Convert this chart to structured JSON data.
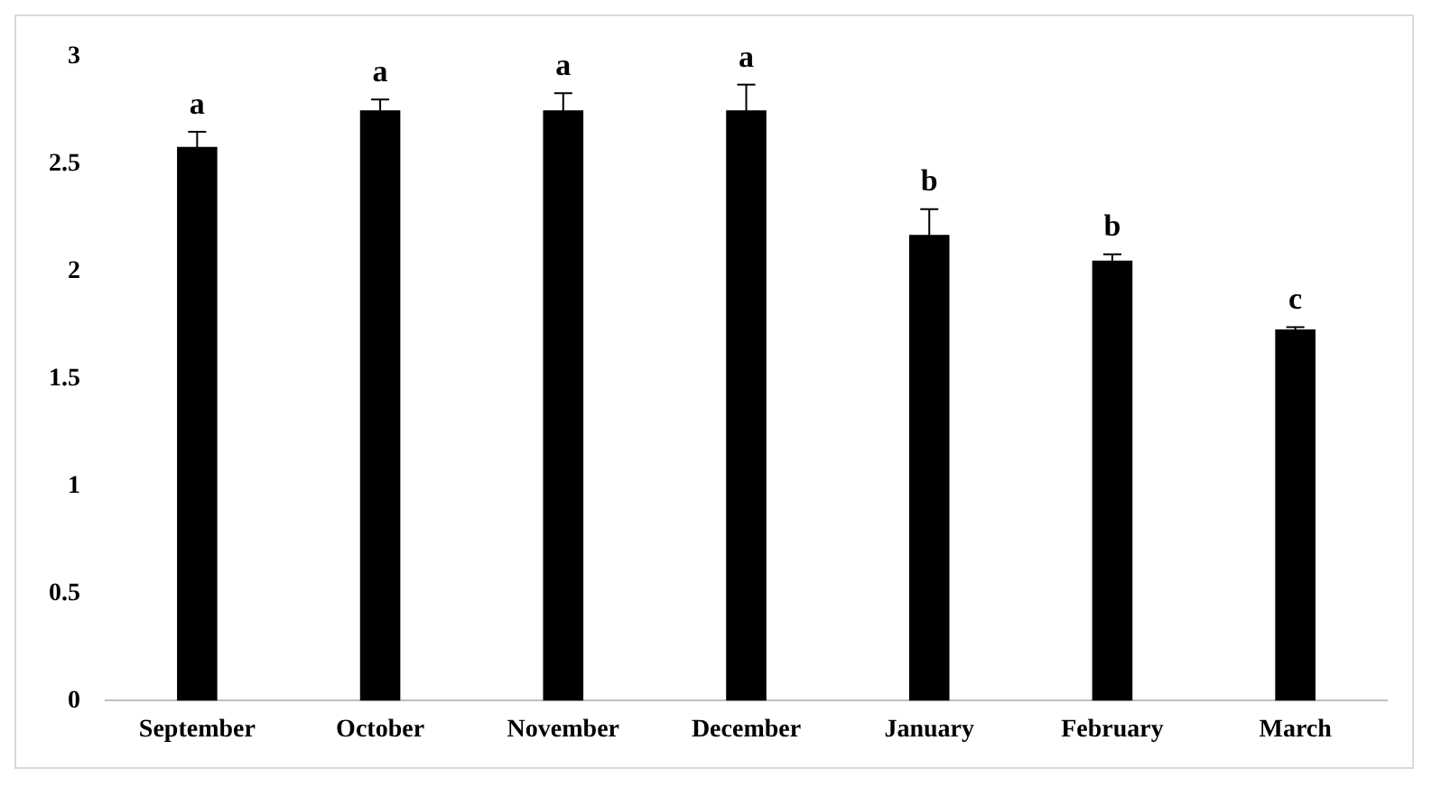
{
  "chart_data": {
    "type": "bar",
    "categories": [
      "September",
      "October",
      "November",
      "December",
      "January",
      "February",
      "March"
    ],
    "values": [
      2.58,
      2.75,
      2.75,
      2.75,
      2.17,
      2.05,
      1.73
    ],
    "color": "#000000",
    "errors": [
      0.07,
      0.05,
      0.08,
      0.12,
      0.12,
      0.03,
      0.01
    ],
    "ylim": [
      0,
      3
    ],
    "yticks": [
      0,
      0.5,
      1,
      1.5,
      2,
      2.5,
      3
    ],
    "grid": false,
    "legend": false,
    "annotations": [
      {
        "text": "a",
        "x": "September",
        "y": 2.65
      },
      {
        "text": "a",
        "x": "October",
        "y": 2.8
      },
      {
        "text": "a",
        "x": "November",
        "y": 2.83
      },
      {
        "text": "a",
        "x": "December",
        "y": 2.87
      },
      {
        "text": "b",
        "x": "January",
        "y": 2.29
      },
      {
        "text": "b",
        "x": "February",
        "y": 2.08
      },
      {
        "text": "c",
        "x": "March",
        "y": 1.74
      }
    ]
  }
}
